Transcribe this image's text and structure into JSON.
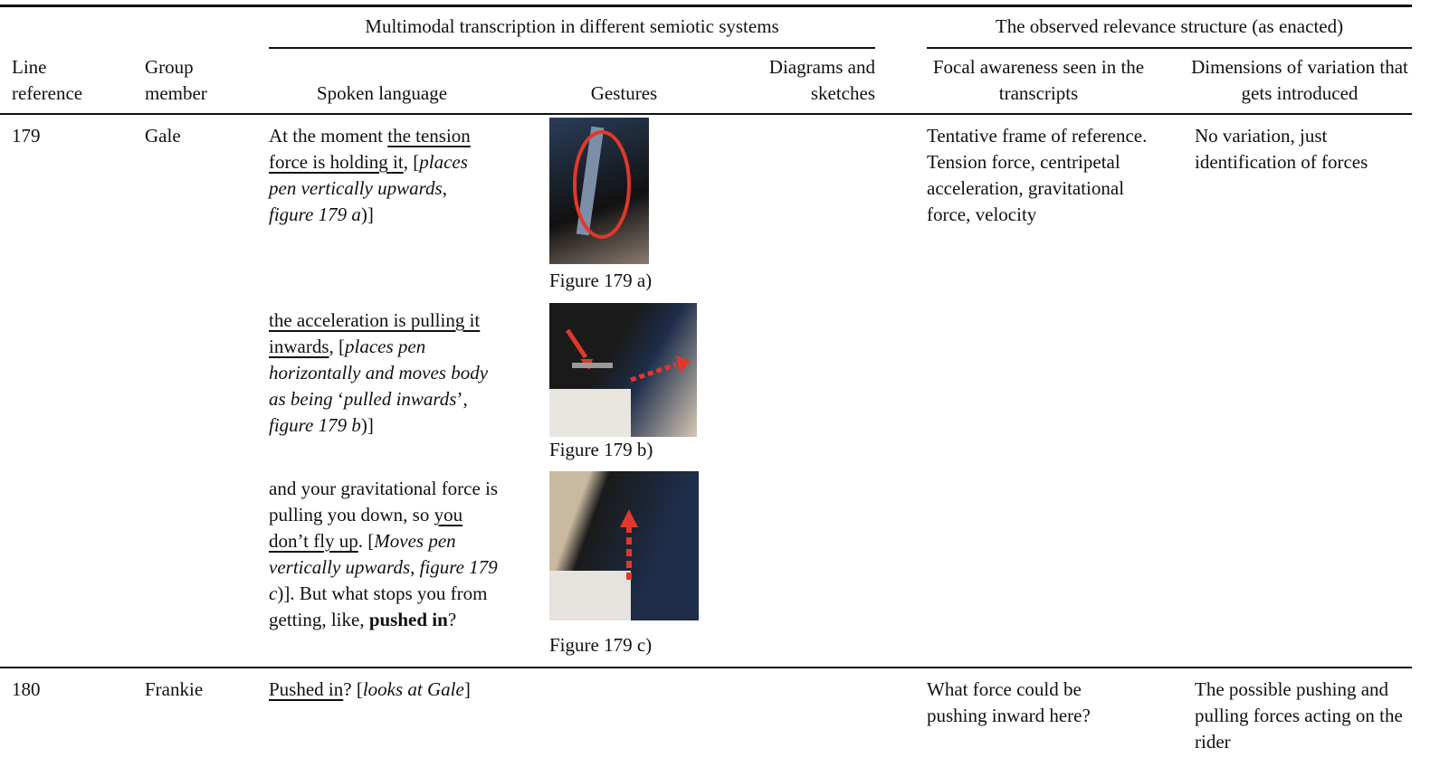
{
  "table": {
    "group_headers": [
      "Multimodal transcription in different semiotic systems",
      "The observed relevance structure (as enacted)"
    ],
    "columns": [
      "Line reference",
      "Group member",
      "Spoken language",
      "Gestures",
      "Diagrams and sketches",
      "Focal awareness seen in the transcripts",
      "Dimensions of variation that gets introduced"
    ],
    "rows": [
      {
        "line": "179",
        "member": "Gale",
        "spoken": [
          [
            {
              "text": "At the moment ",
              "style": "plain"
            },
            {
              "text": "the tension force is holding it",
              "style": "underline"
            },
            {
              "text": ", [",
              "style": "plain"
            },
            {
              "text": "places pen vertically upwards",
              "style": "italic"
            },
            {
              "text": ", ",
              "style": "plain"
            },
            {
              "text": "figure 179 a",
              "style": "italic"
            },
            {
              "text": ")]",
              "style": "plain"
            }
          ],
          [
            {
              "text": "the acceleration is pulling it inwards",
              "style": "underline"
            },
            {
              "text": ", [",
              "style": "plain"
            },
            {
              "text": "places pen horizontally and moves body as being ",
              "style": "italic"
            },
            {
              "text": "‘",
              "style": "plain"
            },
            {
              "text": "pulled inwards",
              "style": "italic"
            },
            {
              "text": "’, ",
              "style": "plain"
            },
            {
              "text": "figure 179 b",
              "style": "italic"
            },
            {
              "text": ")]",
              "style": "plain"
            }
          ],
          [
            {
              "text": "and your gravitational force is pulling you down, so ",
              "style": "plain"
            },
            {
              "text": "you don’t fly up",
              "style": "underline"
            },
            {
              "text": ". [",
              "style": "plain"
            },
            {
              "text": "Moves pen vertically upwards",
              "style": "italic"
            },
            {
              "text": ", ",
              "style": "plain"
            },
            {
              "text": "figure 179 c",
              "style": "italic"
            },
            {
              "text": ")]. But what stops you from getting, like, ",
              "style": "plain"
            },
            {
              "text": "pushed in",
              "style": "bold"
            },
            {
              "text": "?",
              "style": "plain"
            }
          ]
        ],
        "gestures": [
          "Figure 179 a)",
          "Figure 179 b)",
          "Figure 179 c)"
        ],
        "focal": "Tentative frame of reference. Tension force, centripetal acceleration, gravitational force, velocity",
        "variation": "No variation, just identification of forces"
      },
      {
        "line": "180",
        "member": "Frankie",
        "spoken": [
          [
            {
              "text": "Pushed in",
              "style": "underline"
            },
            {
              "text": "? [",
              "style": "plain"
            },
            {
              "text": "looks at Gale",
              "style": "italic"
            },
            {
              "text": "]",
              "style": "plain"
            }
          ]
        ],
        "focal": "What force could be pushing inward here?",
        "variation": "The possible pushing and pulling forces acting on the rider"
      }
    ]
  }
}
